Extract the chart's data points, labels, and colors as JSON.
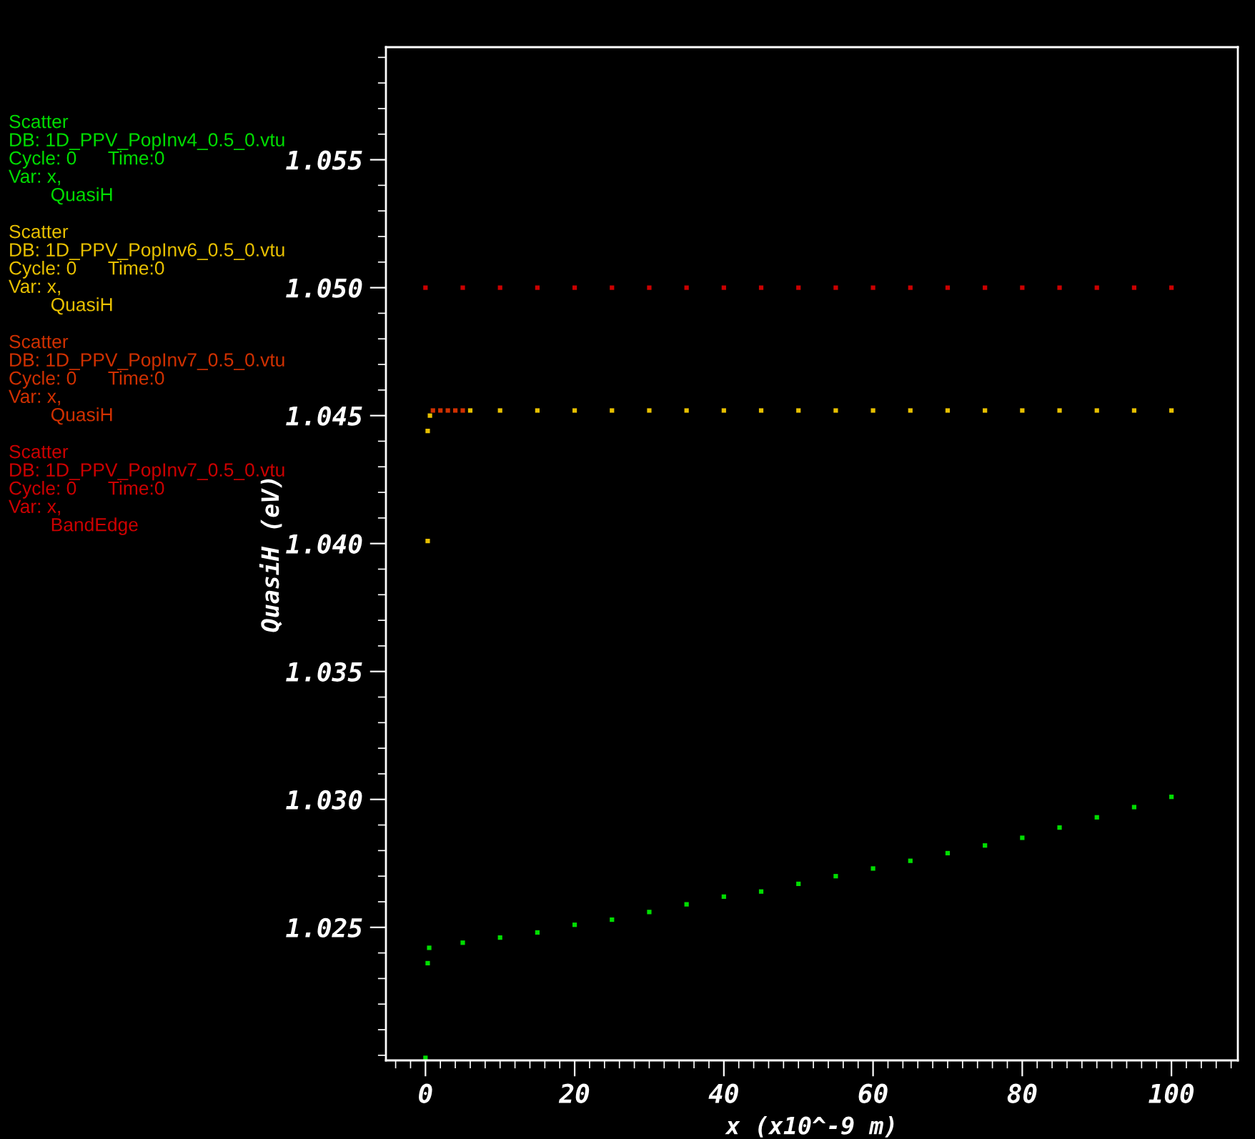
{
  "chart_data": {
    "type": "scatter",
    "xlabel": "x (x10^-9 m)",
    "ylabel": "QuasiH (eV)",
    "xlim": [
      -5.3,
      108.9
    ],
    "ylim": [
      1.0198,
      1.0594
    ],
    "xticks": [
      0,
      20,
      40,
      60,
      80,
      100
    ],
    "yticks": [
      {
        "value": 1.025,
        "label": "1.025"
      },
      {
        "value": 1.03,
        "label": "1.030"
      },
      {
        "value": 1.035,
        "label": "1.035"
      },
      {
        "value": 1.04,
        "label": "1.040"
      },
      {
        "value": 1.045,
        "label": "1.045"
      },
      {
        "value": 1.05,
        "label": "1.050"
      },
      {
        "value": 1.055,
        "label": "1.055"
      }
    ],
    "grid": false,
    "legend": "left",
    "marker": "square",
    "series": [
      {
        "name": "Scatter\nDB: 1D_PPV_PopInv4_0.5_0.vtu\nCycle: 0      Time:0\nVar: x,\n        QuasiH",
        "color": "#00dd00",
        "x": [
          0,
          0.3,
          0.5,
          5,
          10,
          15,
          20,
          25,
          30,
          35,
          40,
          45,
          50,
          55,
          60,
          65,
          70,
          75,
          80,
          85,
          90,
          95,
          100
        ],
        "values": [
          1.0199,
          1.0236,
          1.0242,
          1.0244,
          1.0246,
          1.0248,
          1.0251,
          1.0253,
          1.0256,
          1.0259,
          1.0262,
          1.0264,
          1.0267,
          1.027,
          1.0273,
          1.0276,
          1.0279,
          1.0282,
          1.0285,
          1.0289,
          1.0293,
          1.0297,
          1.0301
        ]
      },
      {
        "name": "Scatter\nDB: 1D_PPV_PopInv6_0.5_0.vtu\nCycle: 0      Time:0\nVar: x,\n        QuasiH",
        "color": "#e8c000",
        "x": [
          0.3,
          0.3,
          0.6,
          6,
          10,
          15,
          20,
          25,
          30,
          35,
          40,
          45,
          50,
          55,
          60,
          65,
          70,
          75,
          80,
          85,
          90,
          95,
          100
        ],
        "values": [
          1.0401,
          1.0444,
          1.045,
          1.0452,
          1.0452,
          1.0452,
          1.0452,
          1.0452,
          1.0452,
          1.0452,
          1.0452,
          1.0452,
          1.0452,
          1.0452,
          1.0452,
          1.0452,
          1.0452,
          1.0452,
          1.0452,
          1.0452,
          1.0452,
          1.0452,
          1.0452
        ]
      },
      {
        "name": "Scatter\nDB: 1D_PPV_PopInv7_0.5_0.vtu\nCycle: 0      Time:0\nVar: x,\n        QuasiH",
        "color": "#d03000",
        "x": [
          1,
          2,
          3,
          4,
          5
        ],
        "values": [
          1.0452,
          1.0452,
          1.0452,
          1.0452,
          1.0452
        ]
      },
      {
        "name": "Scatter\nDB: 1D_PPV_PopInv7_0.5_0.vtu\nCycle: 0      Time:0\nVar: x,\n        BandEdge",
        "color": "#cc0000",
        "x": [
          0,
          5,
          10,
          15,
          20,
          25,
          30,
          35,
          40,
          45,
          50,
          55,
          60,
          65,
          70,
          75,
          80,
          85,
          90,
          95,
          100
        ],
        "values": [
          1.05,
          1.05,
          1.05,
          1.05,
          1.05,
          1.05,
          1.05,
          1.05,
          1.05,
          1.05,
          1.05,
          1.05,
          1.05,
          1.05,
          1.05,
          1.05,
          1.05,
          1.05,
          1.05,
          1.05,
          1.05
        ]
      }
    ]
  }
}
